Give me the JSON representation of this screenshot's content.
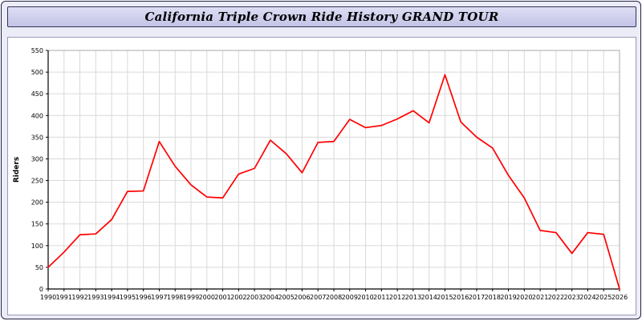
{
  "title": "California Triple Crown Ride History GRAND TOUR",
  "chart_data": {
    "type": "line",
    "title": "California Triple Crown Ride History GRAND TOUR",
    "xlabel": "",
    "ylabel": "Riders",
    "ylim": [
      0,
      550
    ],
    "ytick_step": 50,
    "grid": true,
    "legend": "none",
    "line_color": "#ff0000",
    "x": [
      1990,
      1991,
      1992,
      1993,
      1994,
      1995,
      1996,
      1997,
      1998,
      1999,
      2000,
      2001,
      2002,
      2003,
      2004,
      2005,
      2006,
      2007,
      2008,
      2009,
      2010,
      2011,
      2012,
      2013,
      2014,
      2015,
      2016,
      2017,
      2018,
      2019,
      2020,
      2021,
      2022,
      2023,
      2024,
      2025,
      2026
    ],
    "values": [
      50,
      85,
      125,
      127,
      160,
      225,
      226,
      340,
      283,
      240,
      212,
      210,
      265,
      278,
      343,
      312,
      268,
      338,
      340,
      391,
      372,
      377,
      392,
      411,
      383,
      494,
      385,
      350,
      325,
      262,
      210,
      135,
      130,
      82,
      130,
      126,
      0
    ]
  }
}
